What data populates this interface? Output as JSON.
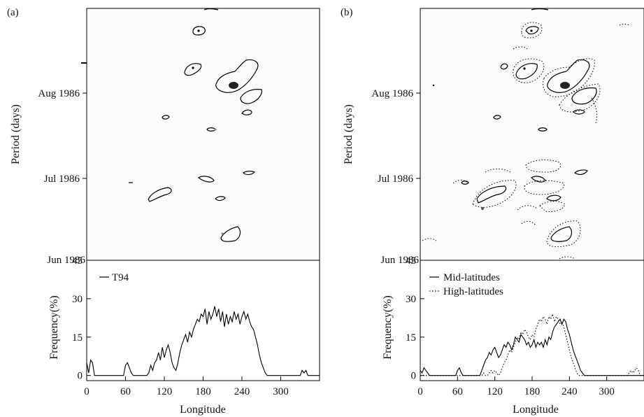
{
  "chart_data": [
    {
      "type": "contour",
      "panel_label": "(a)",
      "ylabel": "Period (days)",
      "y_ticks": [
        "Jun 1986",
        "Jul 1986",
        "Aug 1986"
      ],
      "x_range": [
        0,
        360
      ],
      "grid": false
    },
    {
      "type": "line",
      "xlabel": "Longitude",
      "ylabel": "Frequency(%)",
      "x_ticks": [
        0,
        60,
        120,
        180,
        240,
        300
      ],
      "y_ticks": [
        0,
        15,
        30,
        45
      ],
      "xlim": [
        0,
        360
      ],
      "ylim": [
        -2,
        45
      ],
      "legend_position": "top-left",
      "series": [
        {
          "name": "T94",
          "style": "solid",
          "x": [
            0,
            3,
            6,
            9,
            12,
            15,
            18,
            21,
            24,
            27,
            30,
            33,
            36,
            39,
            42,
            45,
            48,
            51,
            54,
            57,
            60,
            63,
            66,
            69,
            72,
            75,
            78,
            81,
            84,
            87,
            90,
            93,
            96,
            99,
            102,
            105,
            108,
            111,
            114,
            117,
            120,
            123,
            126,
            129,
            132,
            135,
            138,
            141,
            144,
            147,
            150,
            153,
            156,
            159,
            162,
            165,
            168,
            171,
            174,
            177,
            180,
            183,
            186,
            189,
            192,
            195,
            198,
            201,
            204,
            207,
            210,
            213,
            216,
            219,
            222,
            225,
            228,
            231,
            234,
            237,
            240,
            243,
            246,
            249,
            252,
            255,
            258,
            261,
            264,
            267,
            270,
            273,
            276,
            279,
            282,
            285,
            288,
            291,
            294,
            297,
            300,
            303,
            306,
            309,
            312,
            315,
            318,
            321,
            324,
            327,
            330,
            333,
            336,
            339,
            342,
            345,
            348,
            351,
            354,
            357,
            360
          ],
          "values": [
            5,
            1,
            6,
            5,
            0,
            0,
            0,
            0,
            0,
            0,
            0,
            0,
            0,
            0,
            0,
            0,
            0,
            0,
            0,
            0,
            4,
            5,
            3,
            1,
            0,
            0,
            0,
            0,
            0,
            0,
            0,
            0,
            1,
            4,
            2,
            5,
            6,
            9,
            6,
            11,
            7,
            10,
            12,
            9,
            5,
            3,
            2,
            5,
            9,
            12,
            14,
            16,
            13,
            17,
            15,
            18,
            20,
            22,
            21,
            24,
            23,
            26,
            20,
            25,
            22,
            24,
            27,
            23,
            26,
            21,
            25,
            19,
            24,
            20,
            23,
            21,
            25,
            22,
            24,
            20,
            23,
            25,
            22,
            24,
            21,
            19,
            18,
            15,
            12,
            8,
            5,
            3,
            1,
            0,
            0,
            0,
            0,
            0,
            0,
            0,
            0,
            0,
            0,
            0,
            0,
            0,
            0,
            0,
            0,
            0,
            0,
            2,
            1,
            2,
            0,
            0,
            0,
            0,
            0,
            0,
            0
          ]
        }
      ]
    },
    {
      "type": "contour",
      "panel_label": "(b)",
      "ylabel": "Period (days)",
      "y_ticks": [
        "Jun 1986",
        "Jul 1986",
        "Aug 1986"
      ],
      "x_range": [
        0,
        360
      ],
      "grid": false
    },
    {
      "type": "line",
      "xlabel": "Longitude",
      "ylabel": "Frequency(%)",
      "x_ticks": [
        0,
        60,
        120,
        180,
        240,
        300
      ],
      "y_ticks": [
        0,
        15,
        30,
        45
      ],
      "xlim": [
        0,
        360
      ],
      "ylim": [
        -2,
        45
      ],
      "legend_position": "top-left",
      "series": [
        {
          "name": "Mid-latitudes",
          "style": "solid",
          "x": [
            0,
            3,
            6,
            9,
            12,
            15,
            18,
            21,
            24,
            27,
            30,
            33,
            36,
            39,
            42,
            45,
            48,
            51,
            54,
            57,
            60,
            63,
            66,
            69,
            72,
            75,
            78,
            81,
            84,
            87,
            90,
            93,
            96,
            99,
            102,
            105,
            108,
            111,
            114,
            117,
            120,
            123,
            126,
            129,
            132,
            135,
            138,
            141,
            144,
            147,
            150,
            153,
            156,
            159,
            162,
            165,
            168,
            171,
            174,
            177,
            180,
            183,
            186,
            189,
            192,
            195,
            198,
            201,
            204,
            207,
            210,
            213,
            216,
            219,
            222,
            225,
            228,
            231,
            234,
            237,
            240,
            243,
            246,
            249,
            252,
            255,
            258,
            261,
            264,
            267,
            270,
            273,
            276,
            279,
            282,
            285,
            288,
            291,
            294,
            297,
            300,
            303,
            306,
            309,
            312,
            315,
            318,
            321,
            324,
            327,
            330,
            333,
            336,
            339,
            342,
            345,
            348,
            351,
            354,
            357,
            360
          ],
          "values": [
            2,
            1,
            3,
            2,
            1,
            0,
            0,
            0,
            0,
            0,
            0,
            0,
            0,
            0,
            0,
            0,
            0,
            0,
            0,
            0,
            2,
            3,
            1,
            0,
            0,
            0,
            0,
            0,
            0,
            0,
            0,
            0,
            0,
            2,
            4,
            6,
            7,
            9,
            8,
            10,
            11,
            9,
            7,
            8,
            10,
            12,
            11,
            13,
            12,
            10,
            12,
            15,
            14,
            13,
            16,
            15,
            14,
            12,
            13,
            11,
            12,
            14,
            11,
            13,
            12,
            13,
            11,
            14,
            12,
            15,
            14,
            17,
            19,
            20,
            21,
            22,
            20,
            22,
            21,
            18,
            16,
            13,
            10,
            8,
            6,
            4,
            2,
            1,
            0,
            0,
            0,
            0,
            0,
            0,
            0,
            0,
            0,
            0,
            0,
            0,
            0,
            0,
            0,
            0,
            0,
            0,
            0,
            0,
            0,
            0,
            0,
            0,
            0,
            0,
            0,
            0,
            0,
            0,
            0,
            0,
            0
          ],
          "x_offset": 0
        },
        {
          "name": "High-latitudes",
          "style": "dotted",
          "x": [
            0,
            3,
            6,
            9,
            12,
            15,
            18,
            21,
            24,
            27,
            30,
            33,
            36,
            39,
            42,
            45,
            48,
            51,
            54,
            57,
            60,
            63,
            66,
            69,
            72,
            75,
            78,
            81,
            84,
            87,
            90,
            93,
            96,
            99,
            102,
            105,
            108,
            111,
            114,
            117,
            120,
            123,
            126,
            129,
            132,
            135,
            138,
            141,
            144,
            147,
            150,
            153,
            156,
            159,
            162,
            165,
            168,
            171,
            174,
            177,
            180,
            183,
            186,
            189,
            192,
            195,
            198,
            201,
            204,
            207,
            210,
            213,
            216,
            219,
            222,
            225,
            228,
            231,
            234,
            237,
            240,
            243,
            246,
            249,
            252,
            255,
            258,
            261,
            264,
            267,
            270,
            273,
            276,
            279,
            282,
            285,
            288,
            291,
            294,
            297,
            300,
            303,
            306,
            309,
            312,
            315,
            318,
            321,
            324,
            327,
            330,
            333,
            336,
            339,
            342,
            345,
            348,
            351,
            354,
            357,
            360
          ],
          "values": [
            0,
            0,
            0,
            0,
            0,
            0,
            0,
            0,
            0,
            0,
            0,
            0,
            0,
            0,
            0,
            0,
            0,
            0,
            0,
            0,
            0,
            0,
            0,
            0,
            0,
            0,
            0,
            0,
            0,
            0,
            0,
            0,
            0,
            0,
            1,
            0,
            0,
            1,
            2,
            1,
            2,
            1,
            0,
            1,
            3,
            5,
            6,
            8,
            10,
            9,
            11,
            13,
            15,
            14,
            17,
            16,
            18,
            17,
            15,
            14,
            16,
            15,
            18,
            20,
            22,
            21,
            23,
            22,
            20,
            23,
            22,
            24,
            21,
            23,
            22,
            20,
            21,
            19,
            16,
            13,
            10,
            7,
            5,
            3,
            1,
            0,
            0,
            0,
            0,
            0,
            0,
            0,
            0,
            0,
            0,
            0,
            0,
            0,
            0,
            0,
            0,
            0,
            0,
            0,
            0,
            0,
            0,
            0,
            0,
            0,
            0,
            0,
            1,
            2,
            1,
            2,
            3,
            2,
            0,
            0,
            0
          ]
        }
      ]
    }
  ]
}
